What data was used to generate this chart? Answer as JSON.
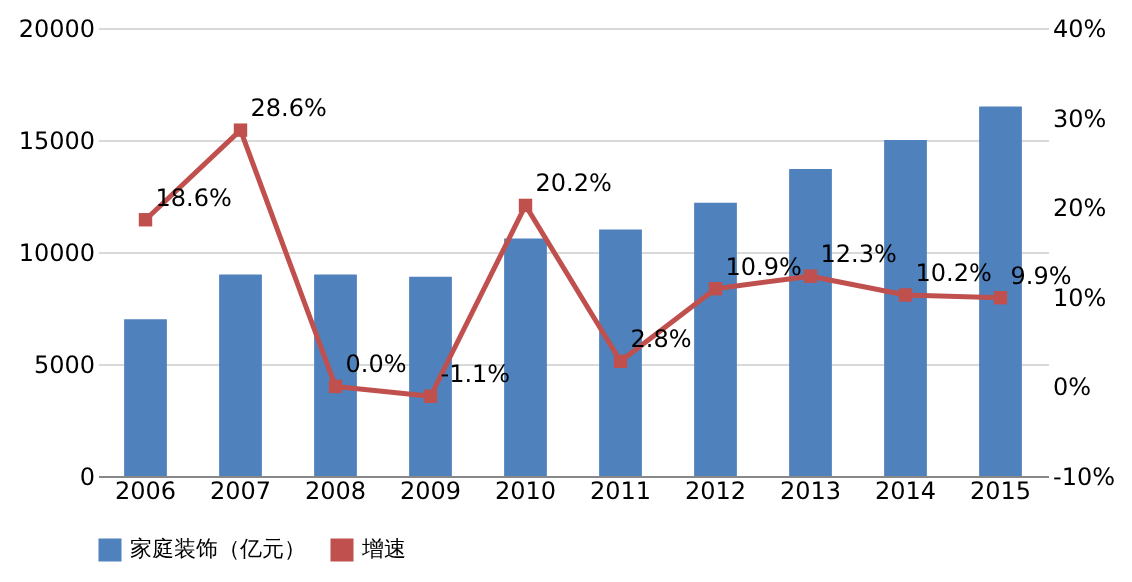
{
  "chart_data": {
    "type": "bar",
    "categories": [
      "2006",
      "2007",
      "2008",
      "2009",
      "2010",
      "2011",
      "2012",
      "2013",
      "2014",
      "2015"
    ],
    "series": [
      {
        "name": "家庭装饰（亿元）",
        "color": "#4f81bd",
        "values": [
          7000,
          9000,
          9000,
          8900,
          10600,
          11000,
          12200,
          13700,
          15000,
          16500
        ]
      },
      {
        "name": "增速",
        "type": "line",
        "axis": "y2",
        "color": "#c0504d",
        "values": [
          18.6,
          28.6,
          0.0,
          -1.1,
          20.2,
          2.8,
          10.9,
          12.3,
          10.2,
          9.9
        ],
        "value_labels": [
          "18.6%",
          "28.6%",
          "0.0%",
          "-1.1%",
          "20.2%",
          "2.8%",
          "10.9%",
          "12.3%",
          "10.2%",
          "9.9%"
        ]
      }
    ],
    "ylim": [
      0,
      20000
    ],
    "yticks": [
      0,
      5000,
      10000,
      15000,
      20000
    ],
    "y2lim": [
      -10,
      40
    ],
    "y2ticks": [
      {
        "value": -10,
        "label": "-10%"
      },
      {
        "value": 0,
        "label": "0%"
      },
      {
        "value": 10,
        "label": "10%"
      },
      {
        "value": 20,
        "label": "20%"
      },
      {
        "value": 30,
        "label": "30%"
      },
      {
        "value": 40,
        "label": "40%"
      }
    ],
    "grid": "y",
    "legend": "bottom",
    "marker": "square"
  }
}
